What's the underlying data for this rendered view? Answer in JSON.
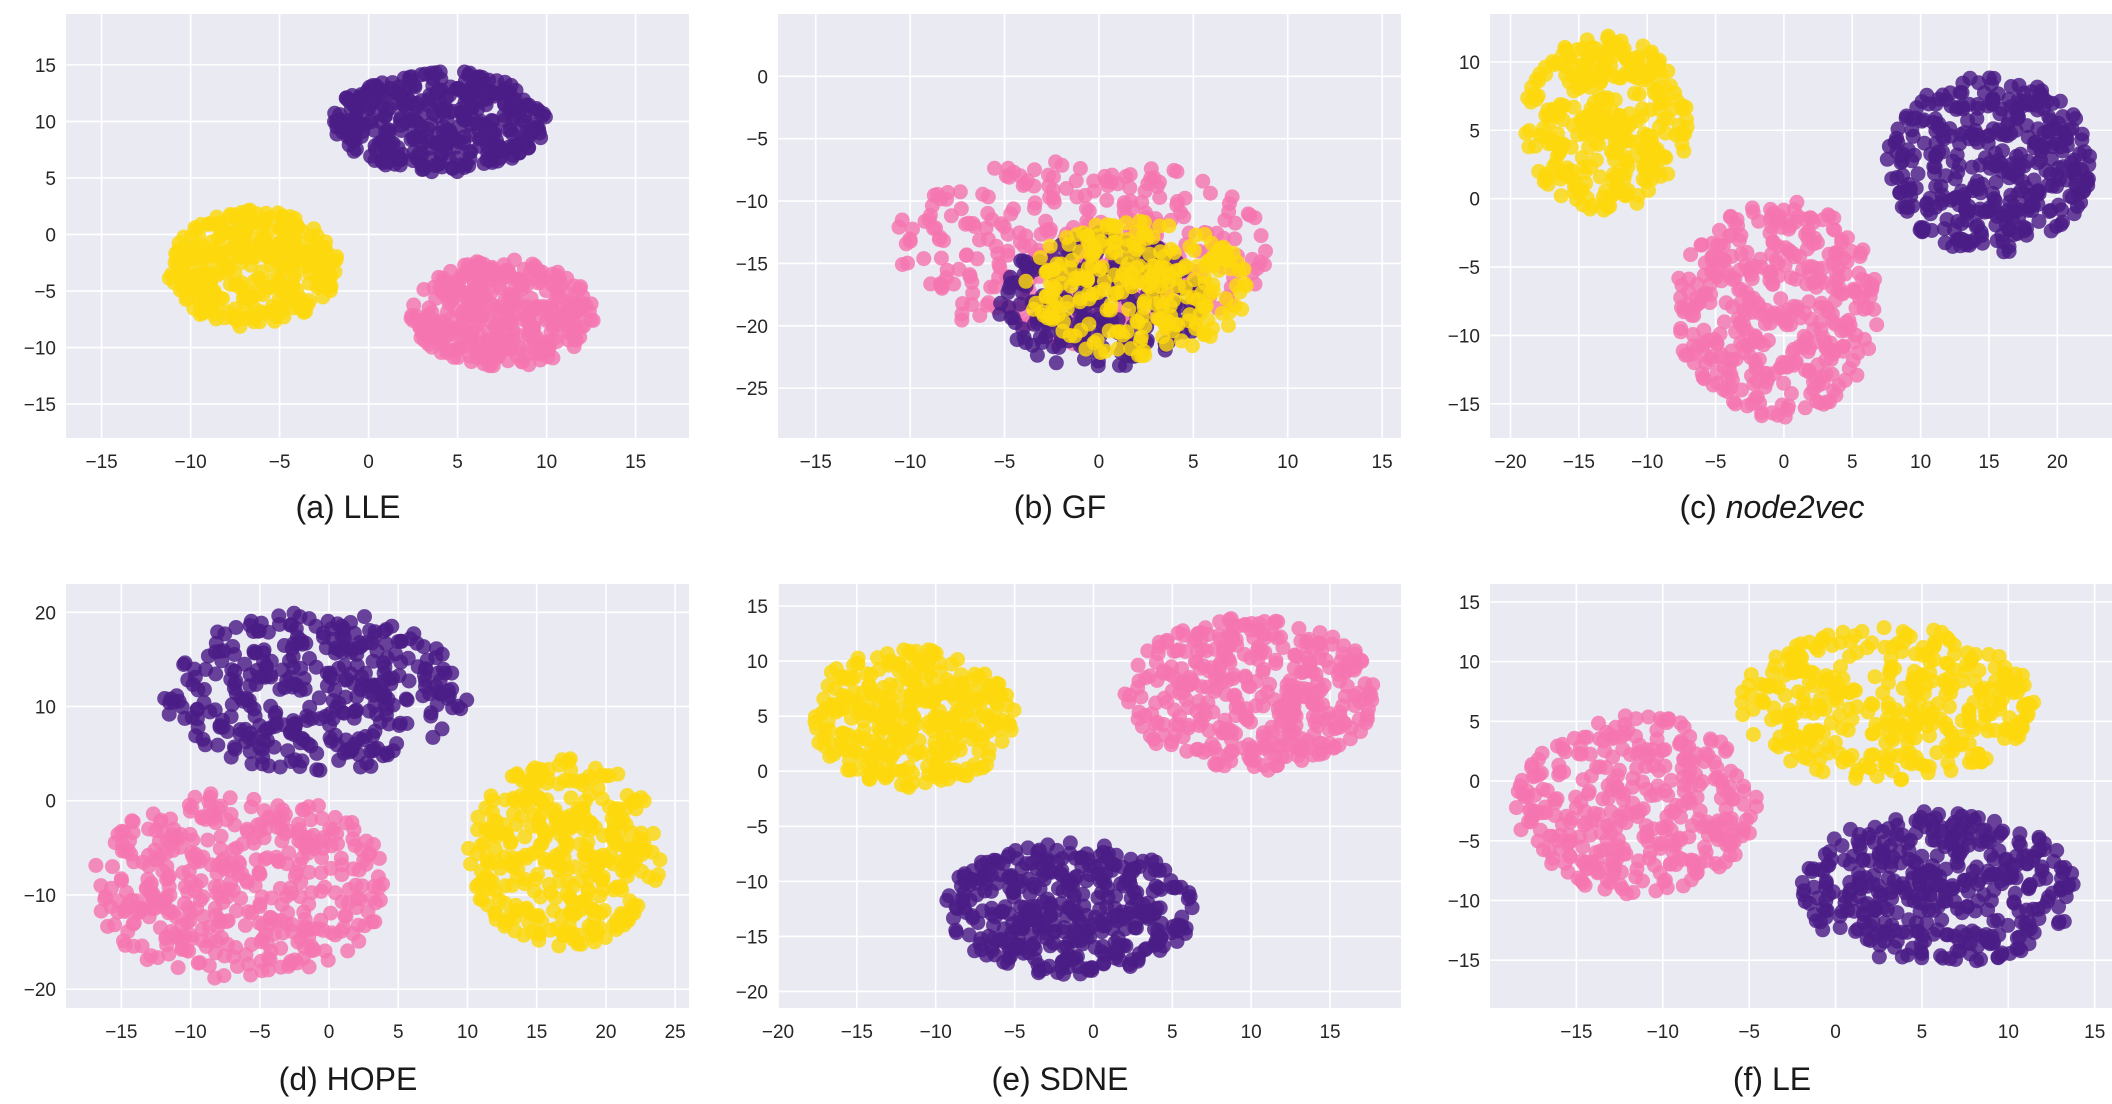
{
  "colors": {
    "background": "#ffffff",
    "plot_background": "#eaeaf2",
    "grid": "#ffffff",
    "class_purple": "#4b1c86",
    "class_yellow": "#fcd80c",
    "class_pink": "#f575b0"
  },
  "chart_data": [
    {
      "type": "scatter",
      "caption_prefix": "(a)",
      "caption_name": "LLE",
      "caption_italic": false,
      "xlim": [
        -17,
        18
      ],
      "ylim": [
        -18,
        19.5
      ],
      "xticks": [
        -15,
        -10,
        -5,
        0,
        5,
        10,
        15
      ],
      "yticks": [
        -15,
        -10,
        -5,
        0,
        5,
        10,
        15
      ],
      "grid": true,
      "series": [
        {
          "color": "purple",
          "center": [
            4,
            10
          ],
          "spread": [
            6,
            4.5
          ],
          "count": 380
        },
        {
          "color": "yellow",
          "center": [
            -6.5,
            -3
          ],
          "spread": [
            4.8,
            5.2
          ],
          "count": 330
        },
        {
          "color": "pink",
          "center": [
            7.5,
            -7
          ],
          "spread": [
            5.2,
            4.8
          ],
          "count": 380
        }
      ]
    },
    {
      "type": "scatter",
      "caption_prefix": "(b)",
      "caption_name": "GF",
      "caption_italic": false,
      "xlim": [
        -17,
        16
      ],
      "ylim": [
        -29,
        5
      ],
      "xticks": [
        -15,
        -10,
        -5,
        0,
        5,
        10,
        15
      ],
      "yticks": [
        -25,
        -20,
        -15,
        -10,
        -5,
        0
      ],
      "grid": true,
      "series": [
        {
          "color": "pink",
          "center": [
            -1,
            -14
          ],
          "spread": [
            10,
            7.5
          ],
          "count": 330
        },
        {
          "color": "purple",
          "center": [
            0,
            -18
          ],
          "spread": [
            5.5,
            5.5
          ],
          "count": 240
        },
        {
          "color": "yellow",
          "center": [
            2,
            -17
          ],
          "spread": [
            6,
            5.5
          ],
          "count": 260
        }
      ]
    },
    {
      "type": "scatter",
      "caption_prefix": "(c)",
      "caption_name": "node2vec",
      "caption_italic": true,
      "xlim": [
        -21.5,
        24
      ],
      "ylim": [
        -17.5,
        13.5
      ],
      "xticks": [
        -20,
        -15,
        -10,
        -5,
        0,
        5,
        10,
        15,
        20
      ],
      "yticks": [
        -15,
        -10,
        -5,
        0,
        5,
        10
      ],
      "grid": true,
      "series": [
        {
          "color": "yellow",
          "center": [
            -13,
            5.5
          ],
          "spread": [
            6,
            6.5
          ],
          "count": 330
        },
        {
          "color": "purple",
          "center": [
            15,
            2.5
          ],
          "spread": [
            7.5,
            6.5
          ],
          "count": 380
        },
        {
          "color": "pink",
          "center": [
            -0.5,
            -8
          ],
          "spread": [
            7.5,
            8
          ],
          "count": 400
        }
      ]
    },
    {
      "type": "scatter",
      "caption_prefix": "(d)",
      "caption_name": "HOPE",
      "caption_italic": false,
      "xlim": [
        -19,
        26
      ],
      "ylim": [
        -22,
        23
      ],
      "xticks": [
        -15,
        -10,
        -5,
        0,
        5,
        10,
        15,
        20,
        25
      ],
      "yticks": [
        -20,
        -10,
        0,
        10,
        20
      ],
      "grid": true,
      "series": [
        {
          "color": "purple",
          "center": [
            -1,
            11.5
          ],
          "spread": [
            11,
            8.5
          ],
          "count": 360
        },
        {
          "color": "pink",
          "center": [
            -6.5,
            -9
          ],
          "spread": [
            11,
            10
          ],
          "count": 420
        },
        {
          "color": "yellow",
          "center": [
            17,
            -5.5
          ],
          "spread": [
            7,
            10
          ],
          "count": 360
        }
      ]
    },
    {
      "type": "scatter",
      "caption_prefix": "(e)",
      "caption_name": "SDNE",
      "caption_italic": false,
      "xlim": [
        -20,
        19.5
      ],
      "ylim": [
        -21.5,
        17
      ],
      "xticks": [
        -20,
        -15,
        -10,
        -5,
        0,
        5,
        10,
        15
      ],
      "yticks": [
        -20,
        -15,
        -10,
        -5,
        0,
        5,
        10,
        15
      ],
      "grid": true,
      "series": [
        {
          "color": "yellow",
          "center": [
            -11.5,
            5
          ],
          "spread": [
            6.5,
            6.5
          ],
          "count": 340
        },
        {
          "color": "pink",
          "center": [
            10,
            7
          ],
          "spread": [
            8,
            7
          ],
          "count": 400
        },
        {
          "color": "purple",
          "center": [
            -1.5,
            -12.5
          ],
          "spread": [
            8,
            6
          ],
          "count": 400
        }
      ]
    },
    {
      "type": "scatter",
      "caption_prefix": "(f)",
      "caption_name": "LE",
      "caption_italic": false,
      "xlim": [
        -20,
        16
      ],
      "ylim": [
        -19,
        16.5
      ],
      "xticks": [
        -15,
        -10,
        -5,
        0,
        5,
        10,
        15
      ],
      "yticks": [
        -15,
        -10,
        -5,
        0,
        5,
        10,
        15
      ],
      "grid": true,
      "series": [
        {
          "color": "yellow",
          "center": [
            3,
            6.5
          ],
          "spread": [
            8.5,
            6.5
          ],
          "count": 360
        },
        {
          "color": "pink",
          "center": [
            -11.5,
            -2
          ],
          "spread": [
            7,
            7.5
          ],
          "count": 360
        },
        {
          "color": "purple",
          "center": [
            6,
            -9
          ],
          "spread": [
            8,
            6.5
          ],
          "count": 400
        }
      ]
    }
  ]
}
